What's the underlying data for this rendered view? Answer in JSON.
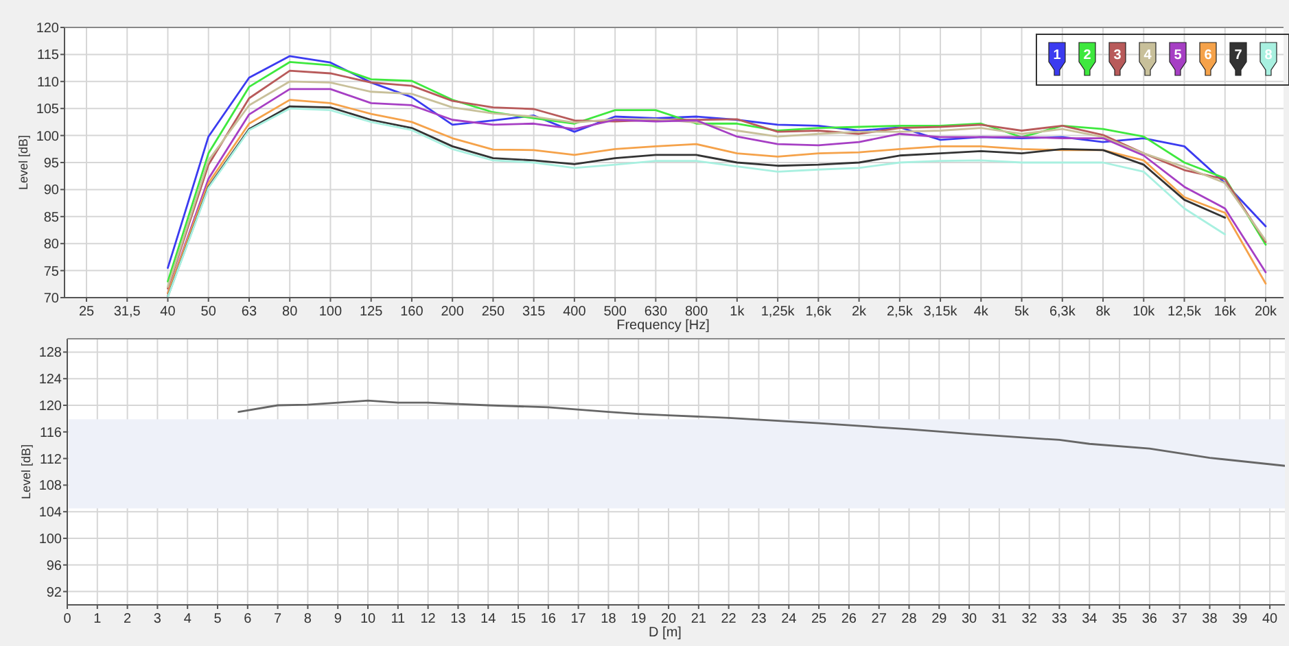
{
  "chart_data": [
    {
      "type": "line",
      "xlabel": "Frequency [Hz]",
      "ylabel": "Level [dB]",
      "categories": [
        "25",
        "31,5",
        "40",
        "50",
        "63",
        "80",
        "100",
        "125",
        "160",
        "200",
        "250",
        "315",
        "400",
        "500",
        "630",
        "800",
        "1k",
        "1,25k",
        "1,6k",
        "2k",
        "2,5k",
        "3,15k",
        "4k",
        "5k",
        "6,3k",
        "8k",
        "10k",
        "12,5k",
        "16k",
        "20k"
      ],
      "ylim": [
        70,
        120
      ],
      "yticks": [
        70,
        75,
        80,
        85,
        90,
        95,
        100,
        105,
        110,
        115,
        120
      ],
      "grid": true,
      "legend": "top right",
      "line_style": "solid",
      "marker": "none",
      "series": [
        {
          "name": "1",
          "color": "#3b3bf0",
          "values": [
            null,
            null,
            75.5,
            99.8,
            110.7,
            114.7,
            113.5,
            109.8,
            107.1,
            102,
            102.8,
            103.7,
            100.7,
            103.5,
            103.2,
            103.5,
            102.9,
            102,
            101.8,
            100.9,
            101.5,
            99.2,
            99.7,
            99.5,
            99.7,
            98.8,
            99.5,
            98,
            91.2,
            83.2
          ]
        },
        {
          "name": "2",
          "color": "#3ee83e",
          "values": [
            null,
            null,
            73,
            96.7,
            109,
            113.6,
            113,
            110.4,
            110.1,
            106.6,
            104.3,
            103.2,
            102.2,
            104.7,
            104.7,
            102.2,
            102.2,
            100.9,
            101.4,
            101.6,
            101.8,
            101.8,
            102.2,
            99.7,
            101.8,
            101.2,
            99.8,
            95,
            92.1,
            79.8
          ]
        },
        {
          "name": "3",
          "color": "#b85a5a",
          "values": [
            null,
            null,
            71.7,
            94.6,
            106.9,
            112,
            111.5,
            109.8,
            109.2,
            106.4,
            105.2,
            104.9,
            102.8,
            102.6,
            102.9,
            102.9,
            103,
            100.7,
            100.9,
            100.3,
            101.4,
            101.6,
            102,
            100.9,
            101.8,
            100.1,
            96.7,
            93.6,
            91.9,
            80.3
          ]
        },
        {
          "name": "4",
          "color": "#c8c09a",
          "values": [
            null,
            null,
            72,
            95.4,
            105.6,
            110,
            109.8,
            108.1,
            107.7,
            105.2,
            104.1,
            103.5,
            102.4,
            103,
            103,
            102.4,
            100.9,
            99.8,
            100.3,
            100.7,
            100.7,
            100.9,
            101.4,
            100.3,
            101.2,
            99.7,
            96.7,
            94.2,
            91.2,
            80.6
          ]
        },
        {
          "name": "5",
          "color": "#a63fc4",
          "values": [
            null,
            null,
            70.8,
            92,
            103.9,
            108.6,
            108.6,
            106,
            105.6,
            102.9,
            102,
            102.2,
            101.2,
            102.9,
            102.6,
            102.8,
            99.8,
            98.4,
            98.2,
            98.8,
            100.3,
            99.7,
            99.7,
            99.7,
            99.5,
            99.5,
            96.3,
            90.5,
            86.5,
            74.7
          ]
        },
        {
          "name": "6",
          "color": "#f5a24a",
          "values": [
            null,
            null,
            70.8,
            91.2,
            102.2,
            106.6,
            106,
            104,
            102.5,
            99.5,
            97.4,
            97.3,
            96.4,
            97.5,
            98,
            98.4,
            96.7,
            96.1,
            96.7,
            96.9,
            97.5,
            98,
            98,
            97.5,
            97.3,
            97.3,
            95.4,
            88.6,
            85.7,
            72.6
          ]
        },
        {
          "name": "7",
          "color": "#333333",
          "values": [
            null,
            null,
            70.2,
            90.5,
            101.2,
            105.4,
            105.2,
            102.9,
            101.4,
            98,
            95.8,
            95.4,
            94.7,
            95.8,
            96.4,
            96.4,
            95,
            94.4,
            94.6,
            95,
            96.3,
            96.7,
            97.1,
            96.7,
            97.5,
            97.3,
            94.6,
            88.1,
            84.8,
            null
          ]
        },
        {
          "name": "8",
          "color": "#a8f0e0",
          "values": [
            null,
            null,
            70.1,
            90.3,
            101,
            105,
            104.7,
            102.5,
            101,
            97.5,
            95.4,
            95,
            94,
            94.6,
            95.3,
            95.3,
            94.3,
            93.3,
            93.7,
            94,
            95,
            95.3,
            95.4,
            95,
            95,
            95,
            93.3,
            86.5,
            81.7,
            null
          ]
        }
      ]
    },
    {
      "type": "line",
      "xlabel": "D [m]",
      "ylabel": "Level [dB]",
      "xlim": [
        0,
        40.5
      ],
      "xticks": [
        0,
        1,
        2,
        3,
        4,
        5,
        6,
        7,
        8,
        9,
        10,
        11,
        12,
        13,
        14,
        15,
        16,
        17,
        18,
        19,
        20,
        21,
        22,
        23,
        24,
        25,
        26,
        27,
        28,
        29,
        30,
        31,
        32,
        33,
        34,
        35,
        36,
        37,
        38,
        39,
        40
      ],
      "ylim": [
        90,
        130
      ],
      "yticks": [
        92,
        96,
        100,
        104,
        108,
        112,
        116,
        120,
        124,
        128
      ],
      "grid": true,
      "legend": false,
      "line_style": "solid",
      "marker": "none",
      "bands": [
        {
          "axis": "y",
          "from": 104.5,
          "to": 117.9,
          "color": "#eef1f9"
        }
      ],
      "series": [
        {
          "color": "#666666",
          "x": [
            5.7,
            7,
            8,
            9,
            10,
            11,
            12,
            13,
            14,
            16,
            18,
            19,
            20,
            22,
            25,
            28,
            30,
            33,
            34,
            36,
            38,
            40.5
          ],
          "values": [
            119,
            120,
            120.1,
            120.4,
            120.7,
            120.4,
            120.4,
            120.2,
            120,
            119.7,
            119,
            118.7,
            118.5,
            118.1,
            117.3,
            116.4,
            115.7,
            114.8,
            114.2,
            113.5,
            112.1,
            110.9
          ]
        }
      ]
    }
  ]
}
